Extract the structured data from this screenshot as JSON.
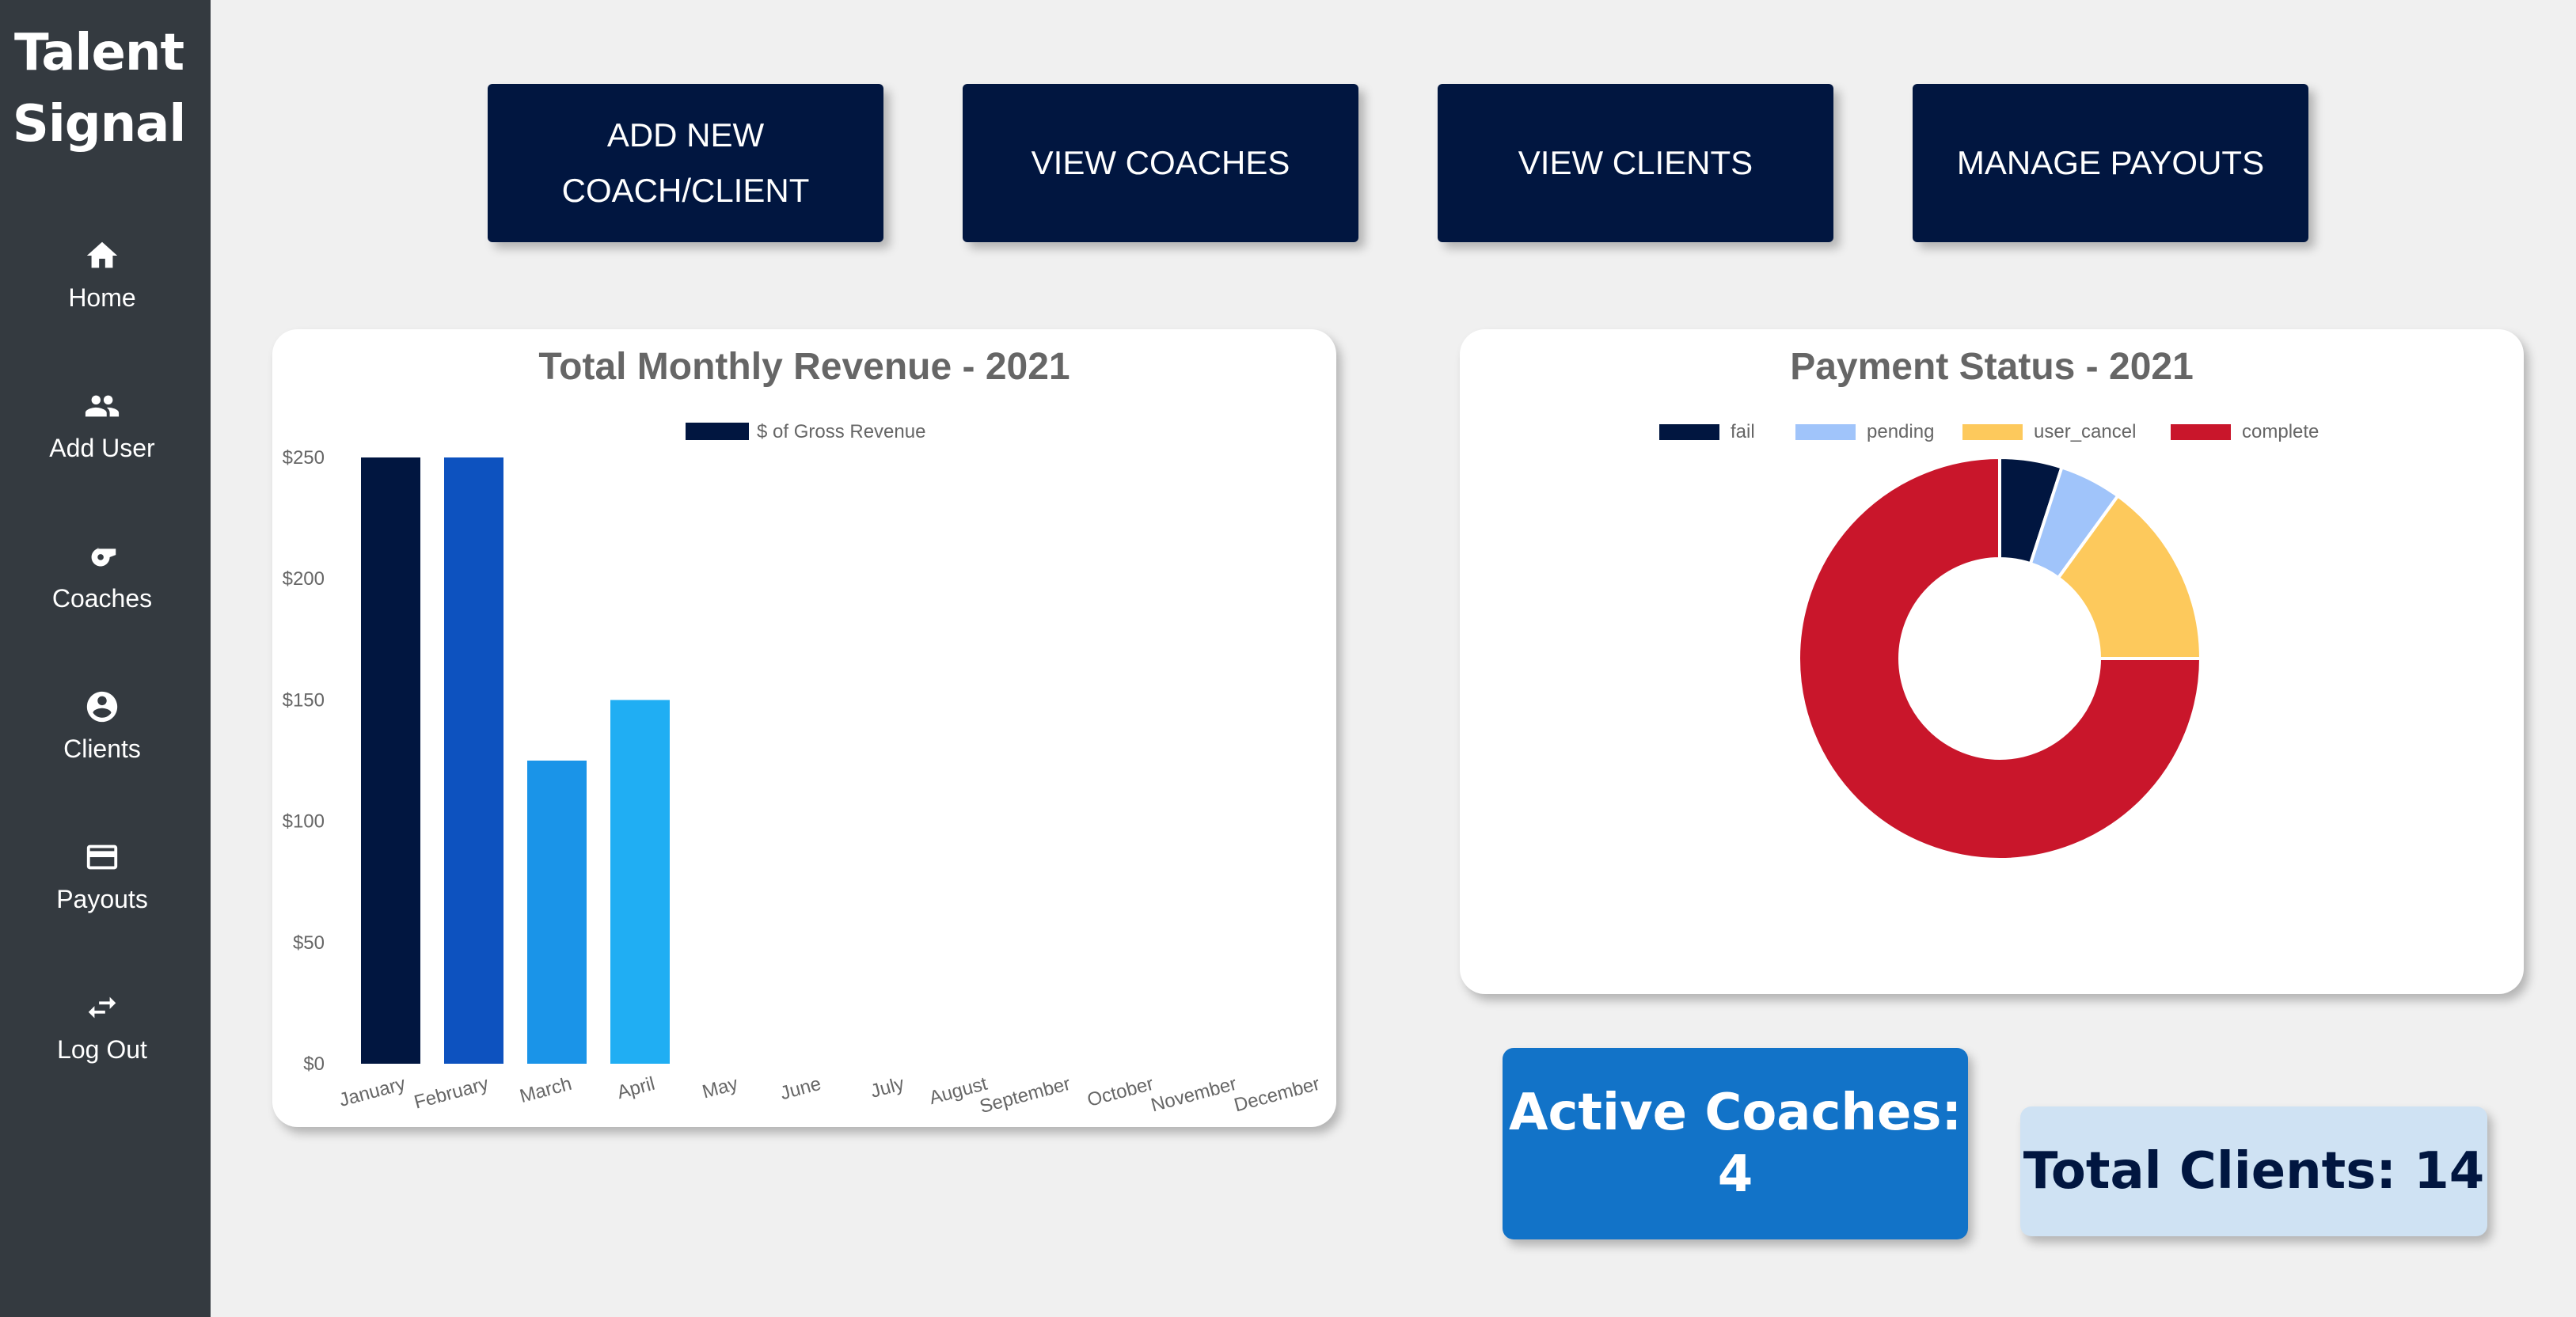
{
  "brand": {
    "line1": "Talent",
    "line2": "Signal"
  },
  "sidebar": {
    "items": [
      {
        "label": "Home",
        "icon": "home-icon"
      },
      {
        "label": "Add User",
        "icon": "group-icon"
      },
      {
        "label": "Coaches",
        "icon": "whistle-icon"
      },
      {
        "label": "Clients",
        "icon": "account-circle-icon"
      },
      {
        "label": "Payouts",
        "icon": "credit-card-icon"
      },
      {
        "label": "Log Out",
        "icon": "swap-arrows-icon"
      }
    ]
  },
  "actions": {
    "add_line1": "ADD NEW",
    "add_line2": "COACH/CLIENT",
    "view_coaches": "VIEW COACHES",
    "view_clients": "VIEW CLIENTS",
    "manage_payouts": "MANAGE PAYOUTS"
  },
  "revenue_card": {
    "title": "Total Monthly Revenue - 2021"
  },
  "payment_card": {
    "title": "Payment Status - 2021"
  },
  "stats": {
    "active_coaches_label": "Active Coaches:",
    "active_coaches_value": "4",
    "total_clients": "Total Clients: 14"
  },
  "colors": {
    "navy": "#011640",
    "sidebar": "#343a40",
    "bar_colors": [
      "#011640",
      "#0d52bf",
      "#1a94e8",
      "#20aef3"
    ],
    "fail": "#011640",
    "pending": "#a0c4fa",
    "user_cancel": "#fdc95c",
    "complete": "#c9162b"
  },
  "chart_data": [
    {
      "type": "bar",
      "title": "Total Monthly Revenue - 2021",
      "categories": [
        "January",
        "February",
        "March",
        "April",
        "May",
        "June",
        "July",
        "August",
        "September",
        "October",
        "November",
        "December"
      ],
      "series": [
        {
          "name": "$ of Gross Revenue",
          "values": [
            250,
            250,
            125,
            150,
            0,
            0,
            0,
            0,
            0,
            0,
            0,
            0
          ]
        }
      ],
      "ylim": [
        0,
        250
      ],
      "yticks": [
        "$0",
        "$50",
        "$100",
        "$150",
        "$200",
        "$250"
      ],
      "legend": "top-center",
      "grid": false
    },
    {
      "type": "pie",
      "subtype": "doughnut",
      "title": "Payment Status - 2021",
      "labels": [
        "fail",
        "pending",
        "user_cancel",
        "complete"
      ],
      "values": [
        1,
        1,
        3,
        15
      ],
      "legend": "top-center"
    }
  ]
}
